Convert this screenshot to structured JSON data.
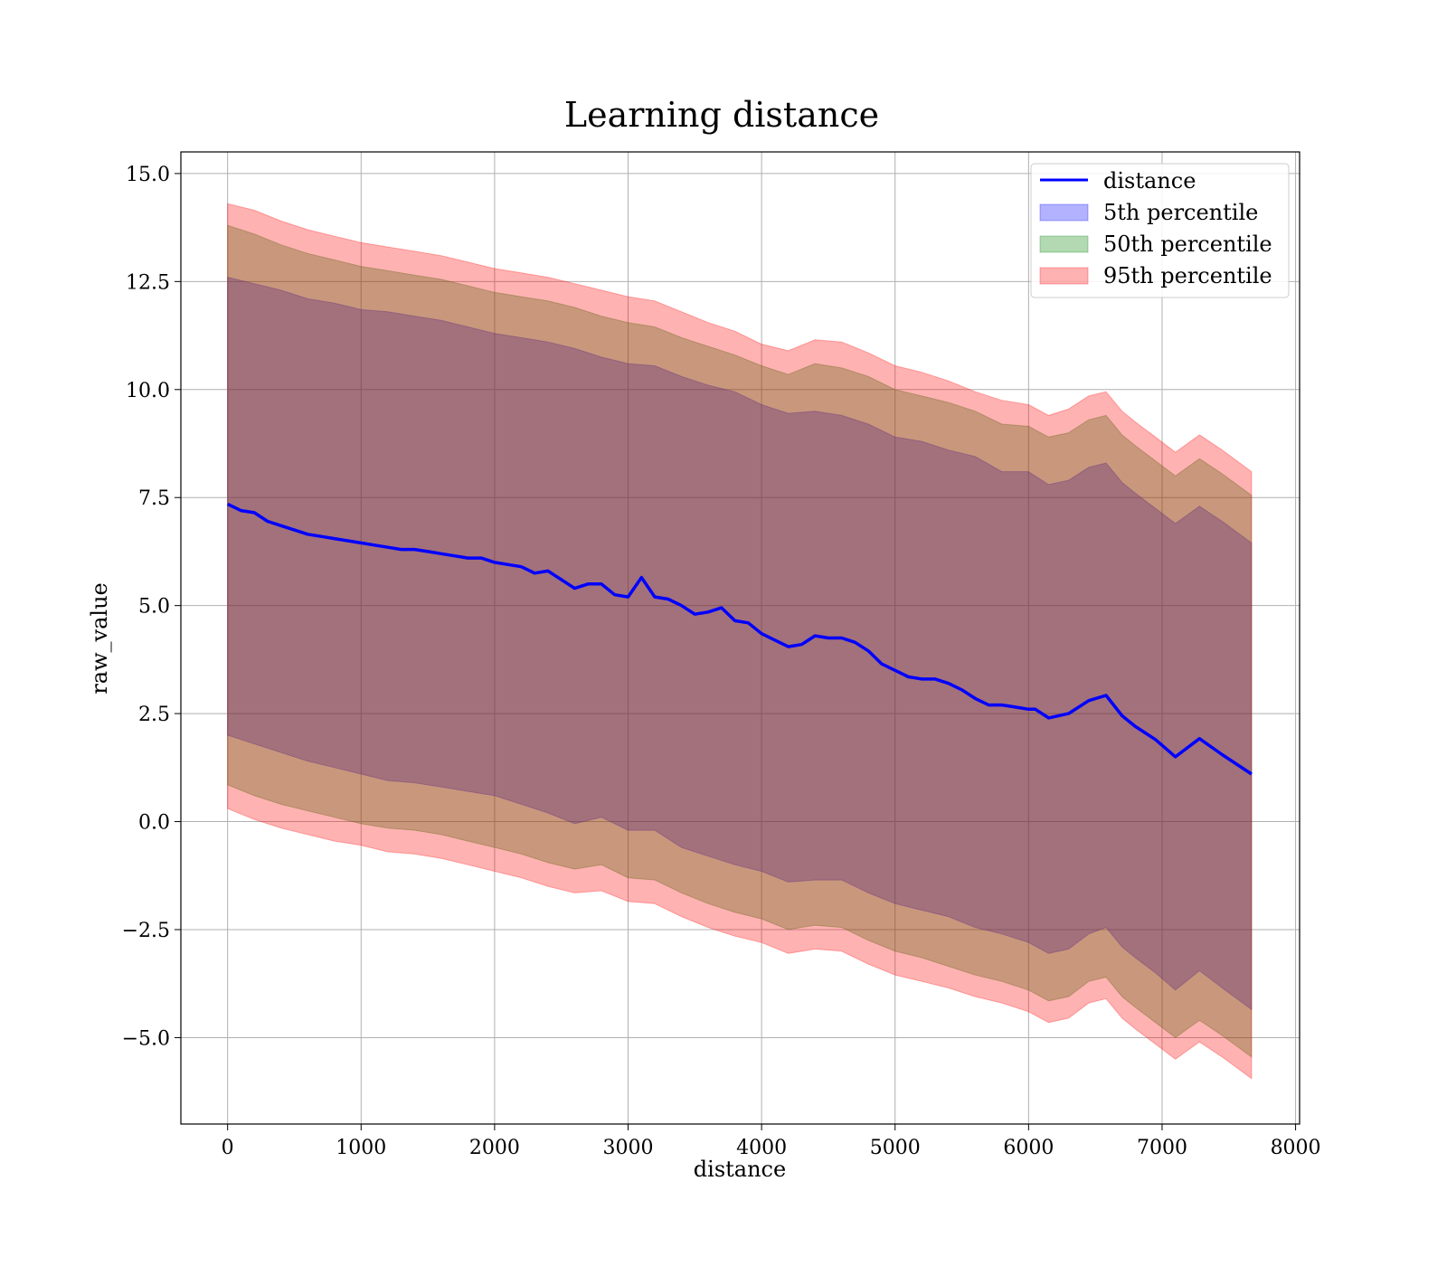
{
  "chart_data": {
    "type": "line",
    "title": "Learning distance",
    "xlabel": "distance",
    "ylabel": "raw_value",
    "xlim": [
      -350,
      8030
    ],
    "ylim": [
      -7.0,
      15.5
    ],
    "xticks": [
      0,
      1000,
      2000,
      3000,
      4000,
      5000,
      6000,
      7000,
      8000
    ],
    "xtick_labels": [
      "0",
      "1000",
      "2000",
      "3000",
      "4000",
      "5000",
      "6000",
      "7000",
      "8000"
    ],
    "yticks": [
      -5.0,
      -2.5,
      0.0,
      2.5,
      5.0,
      7.5,
      10.0,
      12.5,
      15.0
    ],
    "ytick_labels": [
      "−5.0",
      "−2.5",
      "0.0",
      "2.5",
      "5.0",
      "7.5",
      "10.0",
      "12.5",
      "15.0"
    ],
    "grid": true,
    "legend_position": "upper right",
    "series": [
      {
        "name": "distance",
        "kind": "line",
        "color": "#0000ff",
        "x": [
          0,
          100,
          200,
          300,
          400,
          500,
          600,
          700,
          800,
          900,
          1000,
          1100,
          1200,
          1300,
          1400,
          1500,
          1600,
          1700,
          1800,
          1900,
          2000,
          2100,
          2200,
          2300,
          2400,
          2500,
          2600,
          2700,
          2800,
          2900,
          3000,
          3100,
          3200,
          3300,
          3400,
          3500,
          3600,
          3700,
          3800,
          3900,
          4000,
          4100,
          4200,
          4300,
          4400,
          4500,
          4600,
          4700,
          4800,
          4900,
          5000,
          5100,
          5200,
          5300,
          5400,
          5500,
          5600,
          5700,
          5800,
          5900,
          6000,
          6050,
          6150,
          6300,
          6450,
          6580,
          6700,
          6800,
          6950,
          7100,
          7280,
          7450,
          7670
        ],
        "y": [
          7.35,
          7.2,
          7.15,
          6.95,
          6.85,
          6.75,
          6.65,
          6.6,
          6.55,
          6.5,
          6.45,
          6.4,
          6.35,
          6.3,
          6.3,
          6.25,
          6.2,
          6.15,
          6.1,
          6.1,
          6.0,
          5.95,
          5.9,
          5.75,
          5.8,
          5.6,
          5.4,
          5.5,
          5.5,
          5.25,
          5.2,
          5.65,
          5.2,
          5.15,
          5.0,
          4.8,
          4.85,
          4.95,
          4.65,
          4.6,
          4.35,
          4.2,
          4.05,
          4.1,
          4.3,
          4.25,
          4.25,
          4.15,
          3.95,
          3.65,
          3.5,
          3.35,
          3.3,
          3.3,
          3.2,
          3.05,
          2.85,
          2.7,
          2.7,
          2.65,
          2.6,
          2.6,
          2.4,
          2.5,
          2.8,
          2.92,
          2.45,
          2.2,
          1.9,
          1.5,
          1.92,
          1.55,
          1.1
        ]
      },
      {
        "name": "5th percentile",
        "kind": "band",
        "color": "#0000ff",
        "opacity": 0.3,
        "x": [
          0,
          200,
          400,
          600,
          800,
          1000,
          1200,
          1400,
          1600,
          1800,
          2000,
          2200,
          2400,
          2600,
          2800,
          3000,
          3200,
          3400,
          3600,
          3800,
          4000,
          4200,
          4400,
          4600,
          4800,
          5000,
          5200,
          5400,
          5600,
          5800,
          6000,
          6150,
          6300,
          6450,
          6580,
          6700,
          6800,
          6950,
          7100,
          7280,
          7450,
          7670
        ],
        "upper": [
          12.6,
          12.45,
          12.3,
          12.1,
          12.0,
          11.85,
          11.8,
          11.7,
          11.6,
          11.45,
          11.3,
          11.2,
          11.1,
          10.95,
          10.75,
          10.6,
          10.55,
          10.3,
          10.1,
          9.95,
          9.65,
          9.45,
          9.5,
          9.4,
          9.2,
          8.9,
          8.8,
          8.6,
          8.45,
          8.1,
          8.1,
          7.8,
          7.9,
          8.2,
          8.3,
          7.85,
          7.6,
          7.25,
          6.9,
          7.3,
          6.95,
          6.45
        ],
        "lower": [
          2.0,
          1.8,
          1.6,
          1.4,
          1.25,
          1.1,
          0.95,
          0.9,
          0.8,
          0.7,
          0.6,
          0.4,
          0.2,
          -0.05,
          0.1,
          -0.2,
          -0.2,
          -0.6,
          -0.8,
          -1.0,
          -1.15,
          -1.4,
          -1.35,
          -1.35,
          -1.65,
          -1.9,
          -2.05,
          -2.2,
          -2.45,
          -2.6,
          -2.8,
          -3.05,
          -2.95,
          -2.6,
          -2.45,
          -2.9,
          -3.15,
          -3.5,
          -3.9,
          -3.45,
          -3.85,
          -4.35
        ]
      },
      {
        "name": "50th percentile",
        "kind": "band",
        "color": "#008000",
        "opacity": 0.3,
        "x": [
          0,
          200,
          400,
          600,
          800,
          1000,
          1200,
          1400,
          1600,
          1800,
          2000,
          2200,
          2400,
          2600,
          2800,
          3000,
          3200,
          3400,
          3600,
          3800,
          4000,
          4200,
          4400,
          4600,
          4800,
          5000,
          5200,
          5400,
          5600,
          5800,
          6000,
          6150,
          6300,
          6450,
          6580,
          6700,
          6800,
          6950,
          7100,
          7280,
          7450,
          7670
        ],
        "upper": [
          13.8,
          13.6,
          13.35,
          13.15,
          13.0,
          12.85,
          12.75,
          12.65,
          12.55,
          12.4,
          12.25,
          12.15,
          12.05,
          11.9,
          11.7,
          11.55,
          11.45,
          11.2,
          11.0,
          10.8,
          10.55,
          10.35,
          10.6,
          10.5,
          10.3,
          10.0,
          9.85,
          9.7,
          9.5,
          9.2,
          9.15,
          8.9,
          9.0,
          9.3,
          9.4,
          8.95,
          8.7,
          8.35,
          8.0,
          8.4,
          8.05,
          7.55
        ],
        "lower": [
          0.85,
          0.6,
          0.4,
          0.25,
          0.1,
          -0.05,
          -0.15,
          -0.2,
          -0.3,
          -0.45,
          -0.6,
          -0.75,
          -0.95,
          -1.1,
          -1.0,
          -1.3,
          -1.35,
          -1.65,
          -1.9,
          -2.1,
          -2.25,
          -2.5,
          -2.4,
          -2.45,
          -2.75,
          -3.0,
          -3.15,
          -3.35,
          -3.55,
          -3.7,
          -3.9,
          -4.15,
          -4.05,
          -3.7,
          -3.6,
          -4.05,
          -4.3,
          -4.65,
          -5.0,
          -4.6,
          -4.95,
          -5.45
        ]
      },
      {
        "name": "95th percentile",
        "kind": "band",
        "color": "#ff0000",
        "opacity": 0.3,
        "x": [
          0,
          200,
          400,
          600,
          800,
          1000,
          1200,
          1400,
          1600,
          1800,
          2000,
          2200,
          2400,
          2600,
          2800,
          3000,
          3200,
          3400,
          3600,
          3800,
          4000,
          4200,
          4400,
          4600,
          4800,
          5000,
          5200,
          5400,
          5600,
          5800,
          6000,
          6150,
          6300,
          6450,
          6580,
          6700,
          6800,
          6950,
          7100,
          7280,
          7450,
          7670
        ],
        "upper": [
          14.3,
          14.15,
          13.9,
          13.7,
          13.55,
          13.4,
          13.3,
          13.2,
          13.1,
          12.95,
          12.8,
          12.7,
          12.6,
          12.45,
          12.3,
          12.15,
          12.05,
          11.8,
          11.55,
          11.35,
          11.05,
          10.9,
          11.15,
          11.1,
          10.85,
          10.55,
          10.4,
          10.2,
          9.95,
          9.75,
          9.65,
          9.4,
          9.55,
          9.85,
          9.95,
          9.5,
          9.25,
          8.9,
          8.55,
          8.95,
          8.6,
          8.1
        ],
        "lower": [
          0.3,
          0.05,
          -0.15,
          -0.3,
          -0.45,
          -0.55,
          -0.7,
          -0.75,
          -0.85,
          -1.0,
          -1.15,
          -1.3,
          -1.5,
          -1.65,
          -1.6,
          -1.85,
          -1.9,
          -2.2,
          -2.45,
          -2.65,
          -2.8,
          -3.05,
          -2.95,
          -3.0,
          -3.3,
          -3.55,
          -3.7,
          -3.85,
          -4.05,
          -4.2,
          -4.4,
          -4.65,
          -4.55,
          -4.2,
          -4.1,
          -4.55,
          -4.8,
          -5.15,
          -5.5,
          -5.1,
          -5.45,
          -5.95
        ]
      }
    ]
  }
}
